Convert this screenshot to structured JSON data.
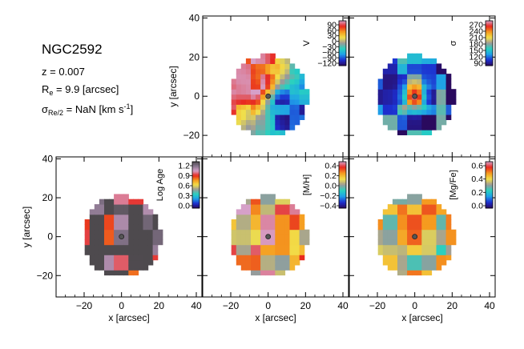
{
  "info": {
    "galaxy": "NGC2592",
    "z_label": "z = 0.007",
    "re_main": "R",
    "re_sub": "e",
    "re_value": " = 9.9 [arcsec]",
    "sigma_main": "σ",
    "sigma_sub": "Re/2",
    "sigma_value": " = NaN [km s",
    "sigma_sup": "-1",
    "sigma_close": "]"
  },
  "axes": {
    "xlabel": "x [arcsec]",
    "ylabel": "y [arcsec]",
    "x_ticks": [
      -20,
      0,
      20,
      40
    ],
    "y_ticks": [
      -20,
      0,
      20,
      40
    ],
    "xlim": [
      -35,
      43
    ],
    "ylim": [
      -31,
      41
    ]
  },
  "chart_data": [
    {
      "type": "heatmap",
      "panel": "velocity",
      "title": "",
      "colorbar_label": "V",
      "colorbar_ticks": [
        "90",
        "60",
        "30",
        "0",
        "-30",
        "-60",
        "-90",
        "-120"
      ],
      "colorbar_range": [
        -130,
        100
      ],
      "colormap": [
        "#2a0a5e",
        "#1d2fd0",
        "#1f9fe8",
        "#27d2c0",
        "#9a9a9a",
        "#f2e04a",
        "#f59a1f",
        "#e8281e",
        "#d6a0c8"
      ],
      "disk_radius": 21,
      "field": {
        "kind": "rotation",
        "amplitude": 95,
        "offset": 0
      }
    },
    {
      "type": "heatmap",
      "panel": "dispersion",
      "title": "",
      "colorbar_label": "σ",
      "colorbar_ticks": [
        "270",
        "240",
        "210",
        "180",
        "150",
        "120",
        "90"
      ],
      "colorbar_range": [
        80,
        285
      ],
      "colormap": [
        "#2a0a5e",
        "#1d2fd0",
        "#1f9fe8",
        "#27d2c0",
        "#9a9a9a",
        "#f2e04a",
        "#f59a1f",
        "#e8281e",
        "#d6a0c8"
      ],
      "disk_radius": 21,
      "field": {
        "kind": "central_peak",
        "center": 240,
        "outer": 120
      }
    },
    {
      "type": "heatmap",
      "panel": "log_age",
      "title": "",
      "colorbar_label": "Log Age",
      "colorbar_ticks": [
        "1.2",
        "0.9",
        "0.6",
        "0.3",
        "0.0"
      ],
      "colorbar_range": [
        -0.05,
        1.25
      ],
      "colormap": [
        "#2a0a5e",
        "#1d2fd0",
        "#1f9fe8",
        "#27d2c0",
        "#9a9a9a",
        "#f2e04a",
        "#f59a1f",
        "#e8281e",
        "#d6a0c8",
        "#8a7890",
        "#4e4a4e"
      ],
      "disk_radius": 21,
      "field": {
        "kind": "flat",
        "level": 1.12
      }
    },
    {
      "type": "heatmap",
      "panel": "metallicity",
      "title": "",
      "colorbar_label": "[M/H]",
      "colorbar_ticks": [
        "0.4",
        "0.2",
        "0.0",
        "-0.2",
        "-0.4"
      ],
      "colorbar_range": [
        -0.45,
        0.45
      ],
      "colormap": [
        "#2a0a5e",
        "#1d2fd0",
        "#1f9fe8",
        "#27d2c0",
        "#9a9a9a",
        "#f2e04a",
        "#f59a1f",
        "#e8281e",
        "#d6a0c8"
      ],
      "disk_radius": 21,
      "field": {
        "kind": "flat",
        "level": 0.22
      }
    },
    {
      "type": "heatmap",
      "panel": "alpha_fe",
      "title": "",
      "colorbar_label": "[Mg/Fe]",
      "colorbar_ticks": [
        "0.6",
        "0.4",
        "0.2",
        "0.0"
      ],
      "colorbar_range": [
        -0.05,
        0.68
      ],
      "colormap": [
        "#2a0a5e",
        "#1d2fd0",
        "#1f9fe8",
        "#27d2c0",
        "#9a9a9a",
        "#f2e04a",
        "#f59a1f",
        "#e8281e",
        "#d6a0c8"
      ],
      "disk_radius": 21,
      "field": {
        "kind": "flat",
        "level": 0.42
      }
    }
  ]
}
